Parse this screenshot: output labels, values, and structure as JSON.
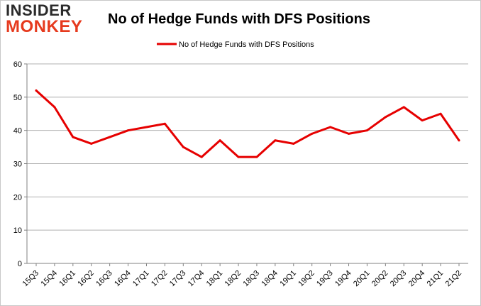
{
  "logo": {
    "line1": "INSIDER",
    "line2": "MONKEY"
  },
  "colors": {
    "series": "#e60000",
    "grid": "#b0b0b0",
    "logo_accent": "#e63a1e"
  },
  "chart_data": {
    "type": "line",
    "title": "No of Hedge Funds with DFS Positions",
    "xlabel": "",
    "ylabel": "",
    "ylim": [
      0,
      60
    ],
    "yticks": [
      0,
      10,
      20,
      30,
      40,
      50,
      60
    ],
    "grid": true,
    "legend_placement": "top-center",
    "categories": [
      "15Q3",
      "15Q4",
      "16Q1",
      "16Q2",
      "16Q3",
      "16Q4",
      "17Q1",
      "17Q2",
      "17Q3",
      "17Q4",
      "18Q1",
      "18Q2",
      "18Q3",
      "18Q4",
      "19Q1",
      "19Q2",
      "19Q3",
      "19Q4",
      "20Q1",
      "20Q2",
      "20Q3",
      "20Q4",
      "21Q1",
      "21Q2"
    ],
    "series": [
      {
        "name": "No of Hedge Funds with DFS Positions",
        "values": [
          52,
          47,
          38,
          36,
          38,
          40,
          41,
          42,
          35,
          32,
          37,
          32,
          32,
          37,
          36,
          39,
          41,
          39,
          40,
          44,
          47,
          43,
          45,
          37
        ]
      }
    ]
  }
}
